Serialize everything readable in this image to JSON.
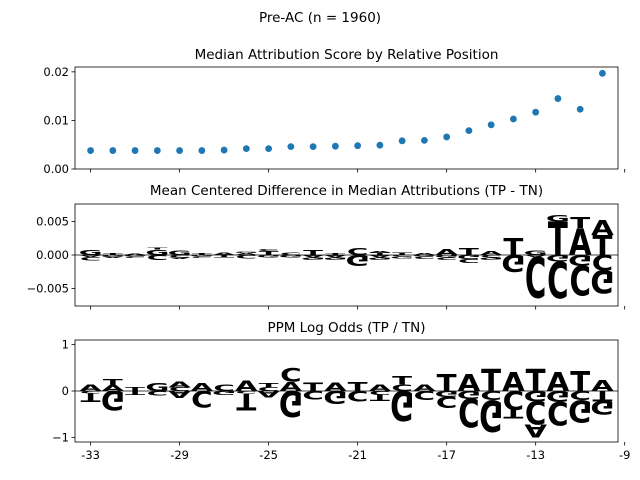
{
  "suptitle": "Pre-AC (n = 1960)",
  "colors": {
    "A": "#008000",
    "C": "#0000ff",
    "G": "#ffa500",
    "T": "#ff0000",
    "dots": "#1f77b4",
    "axis": "#000000"
  },
  "chart_data": [
    {
      "type": "scatter",
      "title": "Median Attribution Score by Relative Position",
      "xlim": [
        -33.7,
        -9.3
      ],
      "ylim": [
        0.0,
        0.021
      ],
      "yticks": [
        0.0,
        0.01,
        0.02
      ],
      "ytick_labels": [
        "0.00",
        "0.01",
        "0.02"
      ],
      "x": [
        -33,
        -32,
        -31,
        -30,
        -29,
        -28,
        -27,
        -26,
        -25,
        -24,
        -23,
        -22,
        -21,
        -20,
        -19,
        -18,
        -17,
        -16,
        -15,
        -14,
        -13,
        -12,
        -11,
        -10
      ],
      "y": [
        0.0038,
        0.0038,
        0.0038,
        0.0038,
        0.0038,
        0.0038,
        0.0039,
        0.0042,
        0.0042,
        0.0046,
        0.0046,
        0.0047,
        0.0048,
        0.0049,
        0.0058,
        0.0059,
        0.0066,
        0.0079,
        0.0091,
        0.0103,
        0.0117,
        0.0145,
        0.0123,
        0.0197
      ]
    },
    {
      "type": "sequence_logo",
      "title": "Mean Centered Difference in Median Attributions (TP - TN)",
      "xlim": [
        -33.7,
        -9.3
      ],
      "ylim": [
        -0.0076,
        0.0076
      ],
      "yticks": [
        0.005,
        0.0,
        -0.005
      ],
      "ytick_labels": [
        "0.005",
        "0.000",
        "−0.005"
      ],
      "positions": [
        {
          "x": -33,
          "pos": [
            [
              "G",
              0.0008
            ]
          ],
          "neg": [
            [
              "A",
              -0.0003
            ],
            [
              "C",
              -0.0005
            ]
          ]
        },
        {
          "x": -32,
          "pos": [
            [
              "T",
              0.0003
            ]
          ],
          "neg": [
            [
              "G",
              -0.0002
            ],
            [
              "A",
              -0.0002
            ]
          ]
        },
        {
          "x": -31,
          "pos": [
            [
              "A",
              0.0002
            ]
          ],
          "neg": [
            [
              "G",
              -0.0002
            ],
            [
              "C",
              -0.0002
            ]
          ]
        },
        {
          "x": -30,
          "pos": [
            [
              "G",
              0.0008
            ],
            [
              "T",
              0.0003
            ]
          ],
          "neg": [
            [
              "C",
              -0.0008
            ]
          ]
        },
        {
          "x": -29,
          "pos": [
            [
              "G",
              0.0007
            ]
          ],
          "neg": [
            [
              "C",
              -0.0004
            ],
            [
              "A",
              -0.0002
            ]
          ]
        },
        {
          "x": -28,
          "pos": [
            [
              "T",
              0.0003
            ]
          ],
          "neg": [
            [
              "G",
              -0.0002
            ],
            [
              "C",
              -0.0002
            ]
          ]
        },
        {
          "x": -27,
          "pos": [
            [
              "A",
              0.0004
            ]
          ],
          "neg": [
            [
              "T",
              -0.0004
            ]
          ]
        },
        {
          "x": -26,
          "pos": [
            [
              "A",
              0.0003
            ],
            [
              "G",
              0.0002
            ]
          ],
          "neg": [
            [
              "C",
              -0.0005
            ]
          ]
        },
        {
          "x": -25,
          "pos": [
            [
              "T",
              0.0006
            ],
            [
              "C",
              0.0003
            ]
          ],
          "neg": [
            [
              "G",
              -0.0004
            ]
          ]
        },
        {
          "x": -24,
          "pos": [
            [
              "C",
              0.0004
            ]
          ],
          "neg": [
            [
              "G",
              -0.0004
            ]
          ]
        },
        {
          "x": -23,
          "pos": [
            [
              "T",
              0.0008
            ]
          ],
          "neg": [
            [
              "A",
              -0.0004
            ],
            [
              "G",
              -0.0004
            ]
          ]
        },
        {
          "x": -22,
          "pos": [
            [
              "T",
              0.0003
            ]
          ],
          "neg": [
            [
              "A",
              -0.0004
            ],
            [
              "G",
              -0.0004
            ]
          ]
        },
        {
          "x": -21,
          "pos": [
            [
              "C",
              0.0011
            ]
          ],
          "neg": [
            [
              "G",
              -0.0016
            ]
          ]
        },
        {
          "x": -20,
          "pos": [
            [
              "T",
              0.0004
            ],
            [
              "A",
              0.0002
            ]
          ],
          "neg": [
            [
              "A",
              -0.0004
            ],
            [
              "G",
              -0.0004
            ]
          ]
        },
        {
          "x": -19,
          "pos": [
            [
              "T",
              0.0004
            ]
          ],
          "neg": [
            [
              "C",
              -0.0002
            ],
            [
              "G",
              -0.0003
            ]
          ]
        },
        {
          "x": -18,
          "pos": [
            [
              "A",
              0.0003
            ]
          ],
          "neg": [
            [
              "G",
              -0.0002
            ],
            [
              "C",
              -0.0004
            ]
          ]
        },
        {
          "x": -17,
          "pos": [
            [
              "A",
              0.0009
            ]
          ],
          "neg": [
            [
              "G",
              -0.0004
            ],
            [
              "C",
              -0.0004
            ]
          ]
        },
        {
          "x": -16,
          "pos": [
            [
              "T",
              0.0011
            ]
          ],
          "neg": [
            [
              "G",
              -0.0006
            ],
            [
              "C",
              -0.0006
            ]
          ]
        },
        {
          "x": -15,
          "pos": [
            [
              "A",
              0.0006
            ]
          ],
          "neg": [
            [
              "C",
              -0.0004
            ],
            [
              "G",
              -0.0004
            ]
          ]
        },
        {
          "x": -14,
          "pos": [
            [
              "T",
              0.0025
            ]
          ],
          "neg": [
            [
              "G",
              -0.0025
            ]
          ]
        },
        {
          "x": -13,
          "pos": [
            [
              "G",
              0.0007
            ]
          ],
          "neg": [
            [
              "A",
              -0.0003
            ],
            [
              "C",
              -0.0061
            ]
          ]
        },
        {
          "x": -12,
          "pos": [
            [
              "T",
              0.005
            ],
            [
              "G",
              0.001
            ]
          ],
          "neg": [
            [
              "G",
              -0.001
            ],
            [
              "C",
              -0.0054
            ]
          ]
        },
        {
          "x": -11,
          "pos": [
            [
              "A",
              0.004
            ],
            [
              "T",
              0.0016
            ]
          ],
          "neg": [
            [
              "G",
              -0.0016
            ],
            [
              "C",
              -0.0045
            ]
          ]
        },
        {
          "x": -10,
          "pos": [
            [
              "T",
              0.003
            ],
            [
              "A",
              0.0022
            ]
          ],
          "neg": [
            [
              "C",
              -0.0023
            ],
            [
              "G",
              -0.0034
            ]
          ]
        }
      ]
    },
    {
      "type": "sequence_logo",
      "title": "PPM Log Odds (TP / TN)",
      "xlim": [
        -33.7,
        -9.3
      ],
      "ylim": [
        -1.1,
        1.1
      ],
      "yticks": [
        1,
        0,
        -1
      ],
      "ytick_labels": [
        "1",
        "0",
        "−1"
      ],
      "xticks": [
        -33,
        -29,
        -25,
        -21,
        -17,
        -13,
        -9
      ],
      "xtick_labels": [
        "-33",
        "-29",
        "-25",
        "-21",
        "-17",
        "-13",
        "-9"
      ],
      "positions": [
        {
          "x": -33,
          "pos": [
            [
              "A",
              0.14
            ]
          ],
          "neg": [
            [
              "C",
              -0.05
            ],
            [
              "T",
              -0.18
            ]
          ]
        },
        {
          "x": -32,
          "pos": [
            [
              "A",
              0.12
            ],
            [
              "T",
              0.14
            ]
          ],
          "neg": [
            [
              "G",
              -0.42
            ]
          ]
        },
        {
          "x": -31,
          "pos": [
            [
              "T",
              0.08
            ]
          ],
          "neg": [
            [
              "T",
              -0.08
            ]
          ]
        },
        {
          "x": -30,
          "pos": [
            [
              "G",
              0.17
            ]
          ],
          "neg": [
            [
              "C",
              -0.1
            ]
          ]
        },
        {
          "x": -29,
          "pos": [
            [
              "C",
              0.08
            ],
            [
              "A",
              0.12
            ]
          ],
          "neg": [
            [
              "V",
              -0.15
            ]
          ]
        },
        {
          "x": -28,
          "pos": [
            [
              "A",
              0.16
            ]
          ],
          "neg": [
            [
              "C",
              -0.35
            ]
          ]
        },
        {
          "x": -27,
          "pos": [
            [
              "C",
              0.14
            ]
          ],
          "neg": [
            [
              "G",
              -0.08
            ]
          ]
        },
        {
          "x": -26,
          "pos": [
            [
              "A",
              0.22
            ]
          ],
          "neg": [
            [
              "C",
              -0.06
            ],
            [
              "T",
              -0.35
            ]
          ]
        },
        {
          "x": -25,
          "pos": [
            [
              "C",
              0.08
            ],
            [
              "T",
              0.09
            ]
          ],
          "neg": [
            [
              "V",
              -0.14
            ]
          ]
        },
        {
          "x": -24,
          "pos": [
            [
              "A",
              0.2
            ],
            [
              "C",
              0.3
            ]
          ],
          "neg": [
            [
              "G",
              -0.56
            ]
          ]
        },
        {
          "x": -23,
          "pos": [
            [
              "T",
              0.18
            ]
          ],
          "neg": [
            [
              "C",
              -0.18
            ]
          ]
        },
        {
          "x": -22,
          "pos": [
            [
              "A",
              0.18
            ]
          ],
          "neg": [
            [
              "G",
              -0.28
            ]
          ]
        },
        {
          "x": -21,
          "pos": [
            [
              "T",
              0.2
            ]
          ],
          "neg": [
            [
              "C",
              -0.22
            ]
          ]
        },
        {
          "x": -20,
          "pos": [
            [
              "A",
              0.14
            ]
          ],
          "neg": [
            [
              "C",
              -0.08
            ],
            [
              "T",
              -0.14
            ]
          ]
        },
        {
          "x": -19,
          "pos": [
            [
              "C",
              0.14
            ],
            [
              "T",
              0.18
            ]
          ],
          "neg": [
            [
              "G",
              -0.64
            ]
          ]
        },
        {
          "x": -18,
          "pos": [
            [
              "A",
              0.14
            ]
          ],
          "neg": [
            [
              "C",
              -0.2
            ]
          ]
        },
        {
          "x": -17,
          "pos": [
            [
              "T",
              0.36
            ]
          ],
          "neg": [
            [
              "G",
              -0.12
            ],
            [
              "C",
              -0.25
            ]
          ]
        },
        {
          "x": -16,
          "pos": [
            [
              "A",
              0.36
            ]
          ],
          "neg": [
            [
              "G",
              -0.16
            ],
            [
              "C",
              -0.62
            ]
          ]
        },
        {
          "x": -15,
          "pos": [
            [
              "T",
              0.48
            ]
          ],
          "neg": [
            [
              "C",
              -0.2
            ],
            [
              "G",
              -0.68
            ]
          ]
        },
        {
          "x": -14,
          "pos": [
            [
              "A",
              0.4
            ]
          ],
          "neg": [
            [
              "C",
              -0.4
            ],
            [
              "T",
              -0.2
            ]
          ]
        },
        {
          "x": -13,
          "pos": [
            [
              "T",
              0.48
            ]
          ],
          "neg": [
            [
              "G",
              -0.22
            ],
            [
              "C",
              -0.5
            ],
            [
              "A",
              -0.28
            ]
          ]
        },
        {
          "x": -12,
          "pos": [
            [
              "A",
              0.4
            ]
          ],
          "neg": [
            [
              "G",
              -0.24
            ],
            [
              "C",
              -0.5
            ]
          ]
        },
        {
          "x": -11,
          "pos": [
            [
              "T",
              0.44
            ]
          ],
          "neg": [
            [
              "C",
              -0.2
            ],
            [
              "G",
              -0.48
            ]
          ]
        },
        {
          "x": -10,
          "pos": [
            [
              "A",
              0.24
            ]
          ],
          "neg": [
            [
              "T",
              -0.22
            ],
            [
              "G",
              -0.3
            ]
          ]
        }
      ]
    }
  ]
}
